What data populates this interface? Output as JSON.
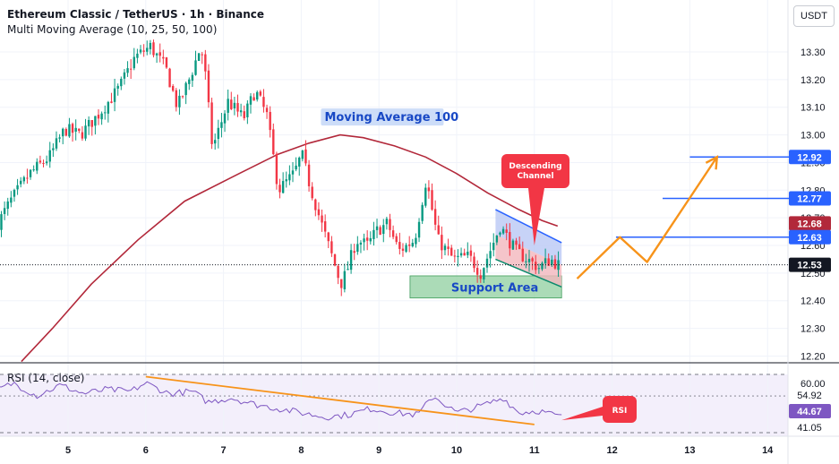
{
  "header": {
    "title": "Ethereum Classic / TetherUS · 1h · Binance",
    "indicator": "Multi Moving Average (10, 25, 50, 100)"
  },
  "currency_button": "USDT",
  "colors": {
    "up": "#089981",
    "down": "#f23645",
    "ma100": "#b2283a",
    "rsi": "#7e57c2",
    "orange": "#f7931a",
    "blue_level": "#2962ff",
    "channel_fill": "#b9c8f5",
    "channel_fill_low": "#f3b6bd",
    "support_fill": "#8fcf9f"
  },
  "chart_data": [
    {
      "type": "candlestick",
      "title": "Ethereum Classic / TetherUS · 1h · Binance",
      "x_tick_labels": [
        "5",
        "6",
        "7",
        "8",
        "9",
        "10",
        "11",
        "12",
        "13",
        "14"
      ],
      "x_range": [
        4.1,
        14.4
      ],
      "ylim": [
        12.18,
        13.5
      ],
      "y_tick_labels": [
        "13.30",
        "13.20",
        "13.10",
        "13.00",
        "12.90",
        "12.80",
        "12.70",
        "12.60",
        "12.50",
        "12.40",
        "12.30",
        "12.20"
      ],
      "price_labels": [
        {
          "value": 12.92,
          "text": "12.92",
          "color": "#2962ff"
        },
        {
          "value": 12.77,
          "text": "12.77",
          "color": "#2962ff"
        },
        {
          "value": 12.68,
          "text": "12.68",
          "color": "#b2283a"
        },
        {
          "value": 12.63,
          "text": "12.63",
          "color": "#2962ff"
        },
        {
          "value": 12.53,
          "text": "12.53",
          "color": "#131722"
        }
      ],
      "current_price": 12.53,
      "anchors": [
        [
          4.1,
          12.66
        ],
        [
          4.3,
          12.76
        ],
        [
          4.55,
          12.86
        ],
        [
          4.8,
          12.92
        ],
        [
          5.0,
          13.02
        ],
        [
          5.2,
          13.0
        ],
        [
          5.45,
          13.08
        ],
        [
          5.7,
          13.17
        ],
        [
          5.9,
          13.28
        ],
        [
          6.1,
          13.32
        ],
        [
          6.3,
          13.24
        ],
        [
          6.45,
          13.1
        ],
        [
          6.6,
          13.2
        ],
        [
          6.75,
          13.32
        ],
        [
          6.8,
          13.24
        ],
        [
          6.9,
          12.95
        ],
        [
          7.1,
          13.12
        ],
        [
          7.3,
          13.06
        ],
        [
          7.45,
          13.16
        ],
        [
          7.6,
          13.07
        ],
        [
          7.75,
          12.8
        ],
        [
          7.95,
          12.86
        ],
        [
          8.05,
          12.93
        ],
        [
          8.15,
          12.82
        ],
        [
          8.3,
          12.68
        ],
        [
          8.45,
          12.55
        ],
        [
          8.55,
          12.46
        ],
        [
          8.62,
          12.5
        ],
        [
          8.75,
          12.62
        ],
        [
          8.9,
          12.6
        ],
        [
          9.0,
          12.65
        ],
        [
          9.15,
          12.68
        ],
        [
          9.3,
          12.58
        ],
        [
          9.5,
          12.62
        ],
        [
          9.65,
          12.84
        ],
        [
          9.8,
          12.62
        ],
        [
          10.0,
          12.55
        ],
        [
          10.2,
          12.56
        ],
        [
          10.35,
          12.5
        ],
        [
          10.5,
          12.6
        ],
        [
          10.6,
          12.67
        ],
        [
          10.8,
          12.58
        ],
        [
          10.95,
          12.55
        ],
        [
          11.1,
          12.52
        ],
        [
          11.25,
          12.55
        ],
        [
          11.35,
          12.53
        ]
      ],
      "candle_range": [
        4.1,
        11.35
      ],
      "candles_per_unit": 24,
      "ma100": {
        "name": "Moving Average 100",
        "points": [
          [
            4.4,
            12.18
          ],
          [
            4.8,
            12.3
          ],
          [
            5.3,
            12.46
          ],
          [
            5.9,
            12.62
          ],
          [
            6.5,
            12.76
          ],
          [
            7.2,
            12.86
          ],
          [
            7.7,
            12.93
          ],
          [
            8.1,
            12.97
          ],
          [
            8.5,
            13.0
          ],
          [
            8.8,
            12.99
          ],
          [
            9.2,
            12.96
          ],
          [
            9.6,
            12.92
          ],
          [
            10.0,
            12.86
          ],
          [
            10.4,
            12.79
          ],
          [
            10.8,
            12.73
          ],
          [
            11.1,
            12.69
          ],
          [
            11.3,
            12.67
          ]
        ]
      },
      "descending_channel": {
        "top": [
          [
            10.5,
            12.73
          ],
          [
            11.35,
            12.61
          ]
        ],
        "bottom": [
          [
            10.5,
            12.55
          ],
          [
            11.35,
            12.45
          ]
        ],
        "label_line1": "Descending",
        "label_line2": "Channel"
      },
      "support_area": {
        "x": [
          9.4,
          11.35
        ],
        "y": [
          12.41,
          12.49
        ],
        "label": "Support Area"
      },
      "levels": [
        {
          "x": [
            12.05,
            14.4
          ],
          "y": 12.63
        },
        {
          "x": [
            12.65,
            14.4
          ],
          "y": 12.77
        },
        {
          "x": [
            13.0,
            14.4
          ],
          "y": 12.92
        }
      ],
      "projection": [
        [
          11.55,
          12.48
        ],
        [
          12.1,
          12.63
        ],
        [
          12.45,
          12.54
        ],
        [
          13.35,
          12.92
        ]
      ],
      "ma_label": "Moving Average 100"
    },
    {
      "type": "line",
      "title": "RSI (14, close)",
      "ylim": [
        38,
        68
      ],
      "levels": [
        {
          "value": 60.0,
          "text": "60.00",
          "color": "#131722"
        }
      ],
      "price_labels": [
        {
          "value": 54.92,
          "text": "54.92",
          "color": "#131722"
        },
        {
          "value": 44.67,
          "text": "44.67",
          "color": "#7e57c2"
        },
        {
          "value": 41.05,
          "text": "41.05",
          "color": "#131722"
        }
      ],
      "rsi_anchors": [
        [
          4.1,
          58
        ],
        [
          4.3,
          61
        ],
        [
          4.6,
          55
        ],
        [
          4.9,
          60
        ],
        [
          5.2,
          56
        ],
        [
          5.5,
          58
        ],
        [
          5.8,
          57
        ],
        [
          6.0,
          61
        ],
        [
          6.3,
          56
        ],
        [
          6.6,
          57
        ],
        [
          6.8,
          52
        ],
        [
          7.1,
          54
        ],
        [
          7.4,
          51
        ],
        [
          7.7,
          49
        ],
        [
          8.0,
          47
        ],
        [
          8.3,
          45
        ],
        [
          8.6,
          46
        ],
        [
          8.9,
          49
        ],
        [
          9.2,
          47
        ],
        [
          9.5,
          46
        ],
        [
          9.7,
          55
        ],
        [
          10.0,
          47
        ],
        [
          10.3,
          50
        ],
        [
          10.6,
          54
        ],
        [
          10.8,
          47
        ],
        [
          11.05,
          48
        ],
        [
          11.35,
          45
        ]
      ],
      "trendline": [
        [
          6.0,
          64
        ],
        [
          11.0,
          41.5
        ]
      ],
      "label": "RSI"
    }
  ]
}
